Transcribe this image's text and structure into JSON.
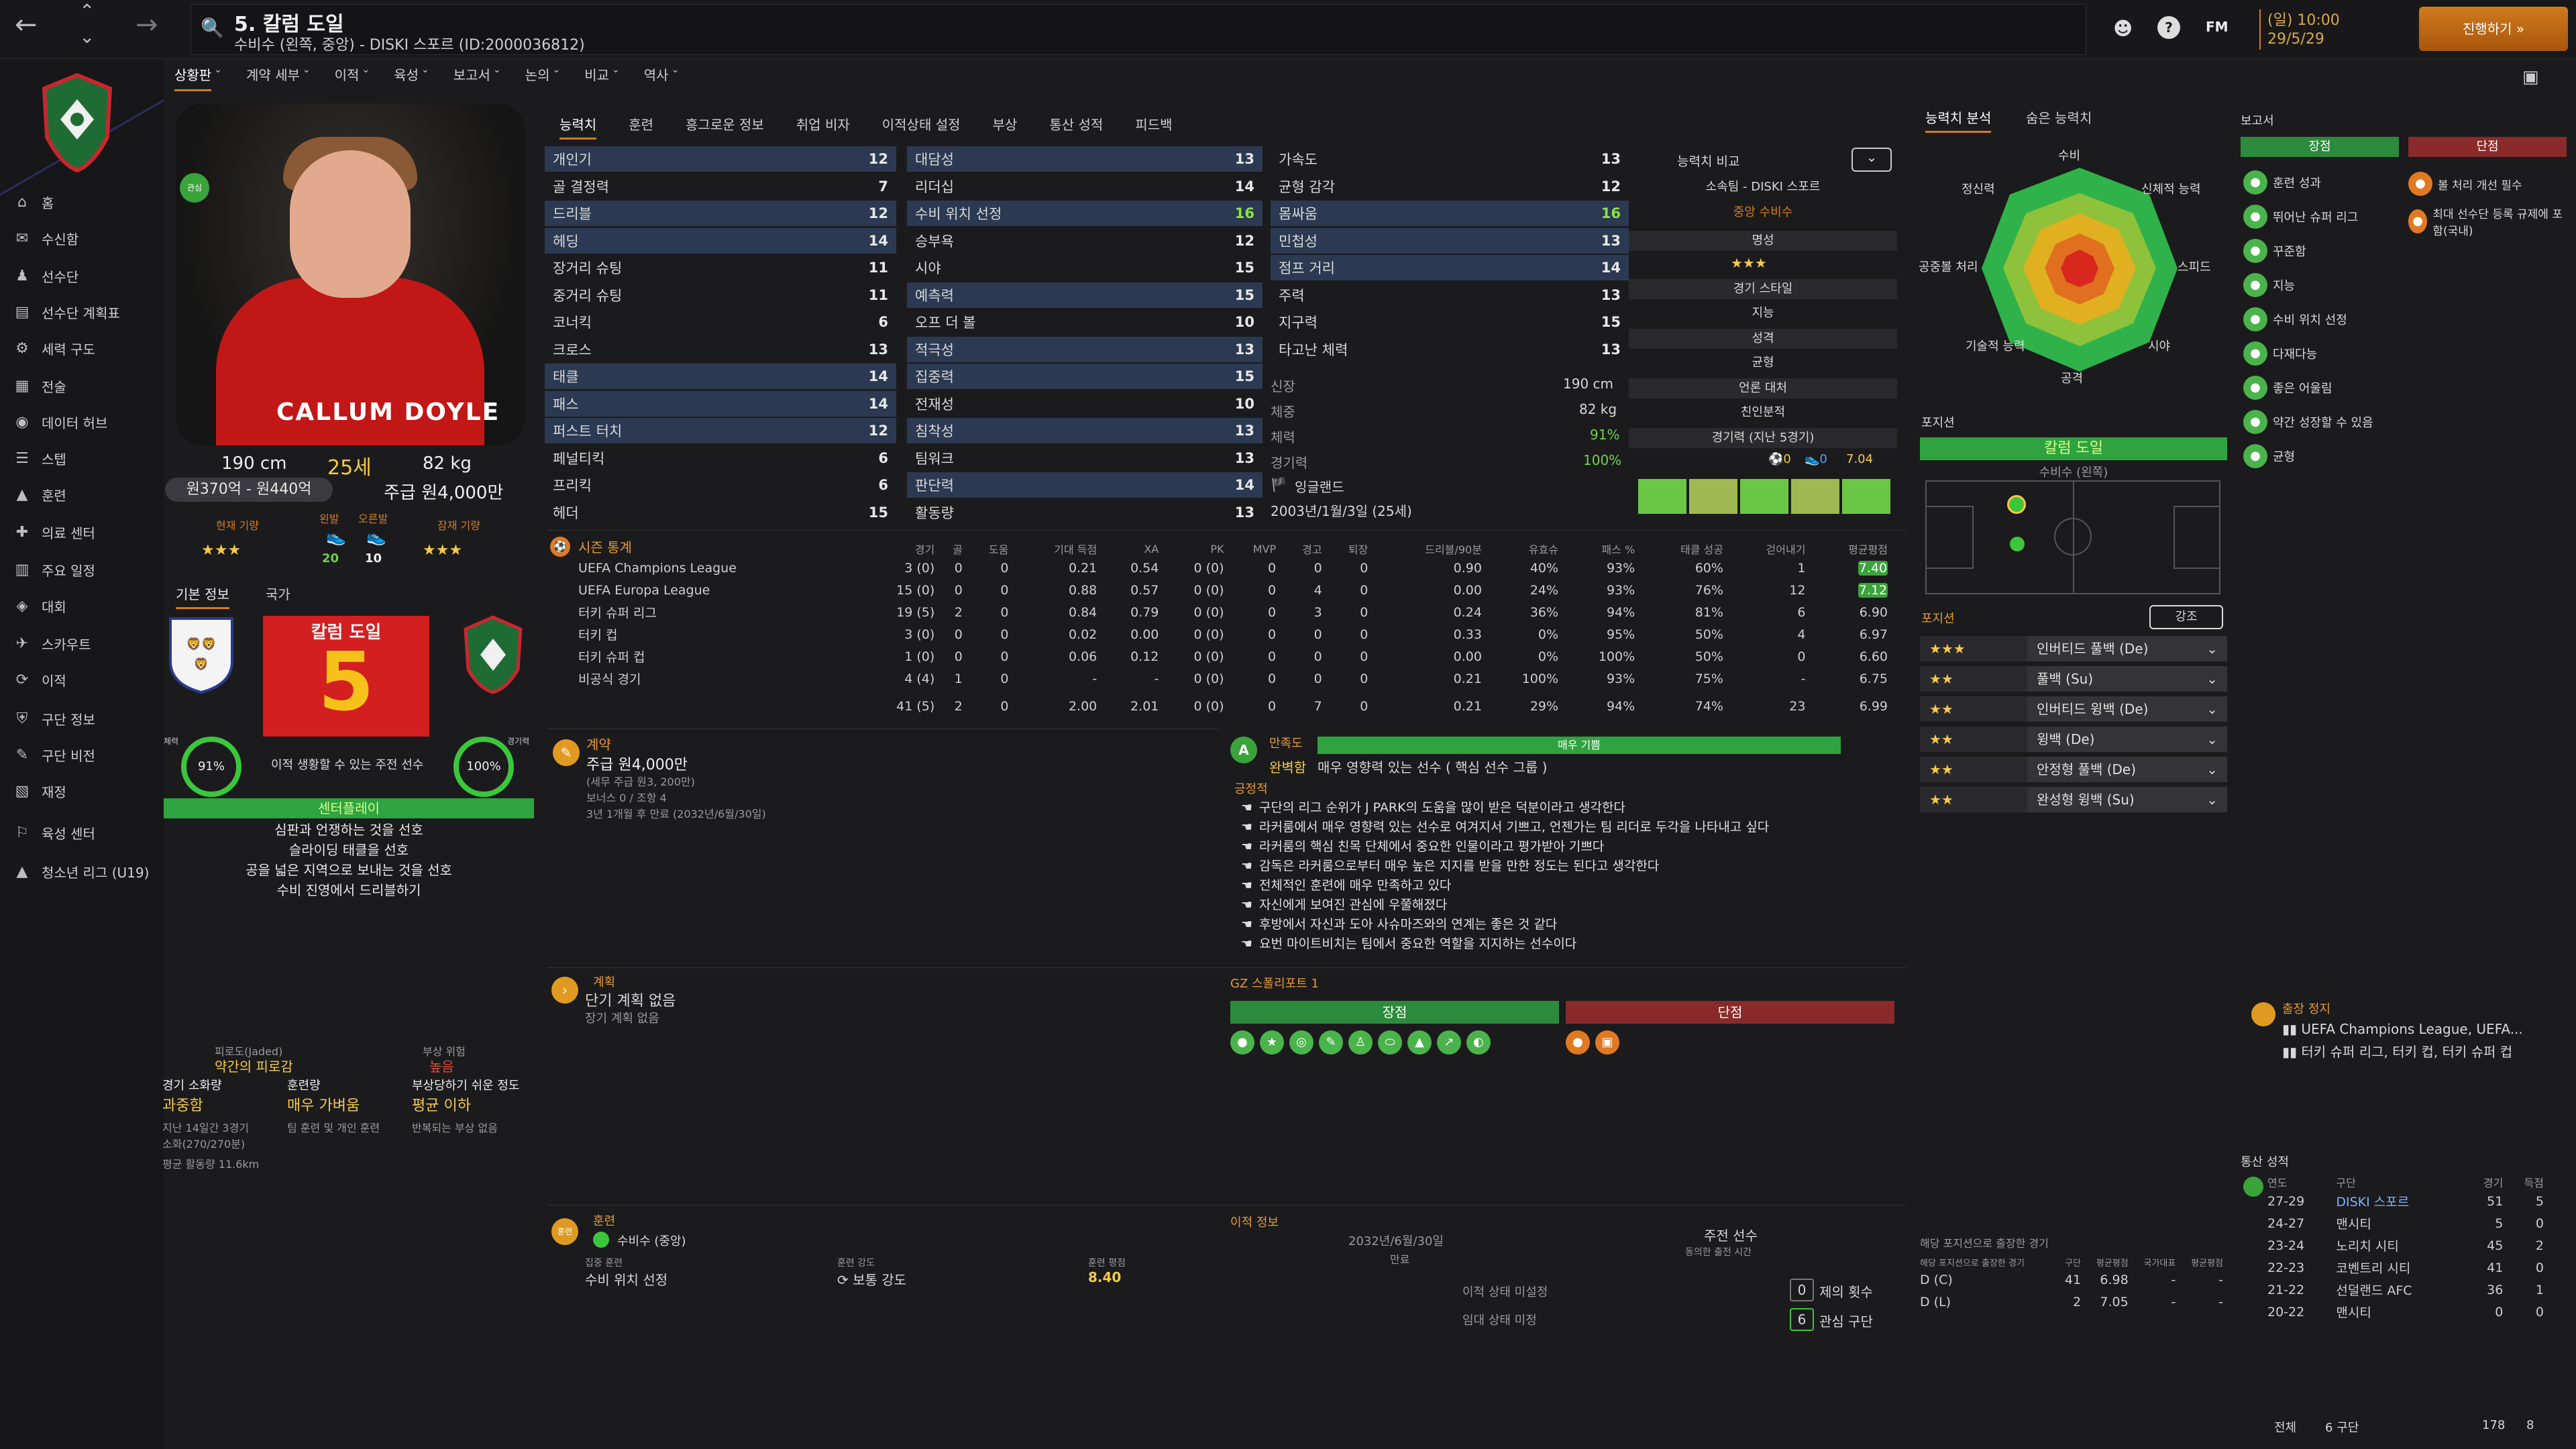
{
  "header": {
    "title": "5. 칼럼 도일",
    "subtitle": "수비수 (왼쪽, 중앙) - DISKI 스포르 (ID:2000036812)",
    "fm_label": "FM",
    "day": "(일) 10:00",
    "date": "29/5/29",
    "continue_label": "진행하기 »"
  },
  "sidebar": {
    "items": [
      {
        "label": "홈",
        "icon": "home-icon"
      },
      {
        "label": "수신함",
        "icon": "inbox-icon"
      },
      {
        "label": "선수단",
        "icon": "squad-icon"
      },
      {
        "label": "선수단 계획표",
        "icon": "plan-icon"
      },
      {
        "label": "세력 구도",
        "icon": "dynamics-icon"
      },
      {
        "label": "전술",
        "icon": "tactics-icon"
      },
      {
        "label": "데이터 허브",
        "icon": "data-icon"
      },
      {
        "label": "스텝",
        "icon": "staff-icon"
      },
      {
        "label": "훈련",
        "icon": "training-icon"
      },
      {
        "label": "의료 센터",
        "icon": "medical-icon"
      },
      {
        "label": "주요 일정",
        "icon": "calendar-icon"
      },
      {
        "label": "대회",
        "icon": "competition-icon"
      },
      {
        "label": "스카우트",
        "icon": "scout-icon"
      },
      {
        "label": "이적",
        "icon": "transfer-icon"
      },
      {
        "label": "구단 정보",
        "icon": "club-info-icon"
      },
      {
        "label": "구단 비전",
        "icon": "vision-icon"
      },
      {
        "label": "재정",
        "icon": "finance-icon"
      },
      {
        "label": "육성 센터",
        "icon": "development-icon"
      },
      {
        "label": "청소년 리그 (U19)",
        "icon": "youth-icon"
      }
    ]
  },
  "subnav": [
    "상황판",
    "계약 세부",
    "이적",
    "육성",
    "보고서",
    "논의",
    "비교",
    "역사"
  ],
  "player": {
    "shirt_name": "CALLUM DOYLE",
    "height": "190 cm",
    "age": "25세",
    "weight": "82 kg",
    "value": "원370억 - 원440억",
    "wage": "주급 원4,000만",
    "current_ability_label": "현재 기량",
    "potential_label": "잠재 기량",
    "left_foot_label": "왼발",
    "right_foot_label": "오른발",
    "left_foot": "20",
    "right_foot": "10",
    "stars_current": "★★★",
    "stars_potential": "★★★",
    "tab_basic": "기본 정보",
    "tab_national": "국가",
    "card_name": "칼럼 도일",
    "card_number": "5",
    "fitness_label": "체력",
    "fitness": "91%",
    "match_label": "경기력",
    "match": "100%",
    "pos_note": "이적 생황할 수 있는 주전 선수",
    "mentality": "센터플레이",
    "traits": [
      "심판과 언쟁하는 것을 선호",
      "슬라이딩 태클을 선호",
      "공을 넓은 지역으로 보내는 것을 선호",
      "수비 진영에서 드리블하기"
    ],
    "fatigue_label": "피로도(Jaded)",
    "fatigue": "약간의 피로감",
    "risk_label": "부상 위험",
    "risk": "높음",
    "load_label": "경기 소화량",
    "load": "과중함",
    "training_label": "훈련량",
    "training": "매우 가벼움",
    "injury_label": "부상당하기 쉬운 정도",
    "injury": "평균 이하",
    "load_note1": "지난 14일간 3경기",
    "load_note2": "소화(270/270분)",
    "load_note3": "평균 활동량 11.6km",
    "training_note": "팀 훈련 및 개인 훈련",
    "injury_note": "반복되는 부상 없음"
  },
  "tabs": [
    "능력치",
    "훈련",
    "흥그로운 정보",
    "취업 비자",
    "이적상태 설정",
    "부상",
    "통산 성적",
    "피드백"
  ],
  "attributes": {
    "col1": [
      [
        "개인기",
        "12",
        "w",
        true
      ],
      [
        "골 결정력",
        "7",
        "w",
        false
      ],
      [
        "드리블",
        "12",
        "w",
        true
      ],
      [
        "헤딩",
        "14",
        "w",
        true
      ],
      [
        "장거리 슈팅",
        "11",
        "w",
        false
      ],
      [
        "중거리 슈팅",
        "11",
        "w",
        false
      ],
      [
        "코너킥",
        "6",
        "w",
        false
      ],
      [
        "크로스",
        "13",
        "w",
        false
      ],
      [
        "태클",
        "14",
        "w",
        true
      ],
      [
        "패스",
        "14",
        "w",
        true
      ],
      [
        "퍼스트 터치",
        "12",
        "w",
        true
      ],
      [
        "페널티킥",
        "6",
        "w",
        false
      ],
      [
        "프리킥",
        "6",
        "w",
        false
      ],
      [
        "헤더",
        "15",
        "w",
        false
      ]
    ],
    "col2": [
      [
        "대담성",
        "13",
        "w",
        true
      ],
      [
        "리더십",
        "14",
        "w",
        false
      ],
      [
        "수비 위치 선정",
        "16",
        "g",
        true
      ],
      [
        "승부욕",
        "12",
        "w",
        false
      ],
      [
        "시야",
        "15",
        "w",
        false
      ],
      [
        "예측력",
        "15",
        "w",
        true
      ],
      [
        "오프 더 볼",
        "10",
        "w",
        false
      ],
      [
        "적극성",
        "13",
        "w",
        true
      ],
      [
        "집중력",
        "15",
        "w",
        true
      ],
      [
        "전재성",
        "10",
        "w",
        false
      ],
      [
        "침착성",
        "13",
        "w",
        true
      ],
      [
        "팀워크",
        "13",
        "w",
        false
      ],
      [
        "판단력",
        "14",
        "w",
        true
      ],
      [
        "활동량",
        "13",
        "w",
        false
      ]
    ],
    "col3": [
      [
        "가속도",
        "13",
        "w",
        false
      ],
      [
        "균형 감각",
        "12",
        "w",
        false
      ],
      [
        "몸싸움",
        "16",
        "g",
        true
      ],
      [
        "민첩성",
        "13",
        "w",
        true
      ],
      [
        "점프 거리",
        "14",
        "w",
        true
      ],
      [
        "주력",
        "13",
        "w",
        false
      ],
      [
        "지구력",
        "15",
        "w",
        false
      ],
      [
        "타고난 체력",
        "13",
        "w",
        false
      ]
    ],
    "height_label": "신장",
    "height": "190 cm",
    "weight_label": "체중",
    "weight": "82 kg",
    "fitness_label": "체력",
    "fitness": "91%",
    "match_label": "경기력",
    "match": "100%",
    "nation": "잉글랜드",
    "dob": "2003년/1월/3일 (25세)"
  },
  "compare": {
    "title": "능력치 비교",
    "club": "소속팀 - DISKI 스포르",
    "pos": "중앙 수비수",
    "fame_label": "명성",
    "fame_stars": "★★★",
    "style_label": "경기 스타일",
    "style": "지능",
    "personality_label": "성격",
    "personality": "균형",
    "media_label": "언론 대처",
    "media": "친인분적",
    "form_label": "경기력 (지난 5경기)",
    "form_goals": "0",
    "form_assists": "0",
    "form_rating": "7.04"
  },
  "season": {
    "title": "시즌 통계",
    "headers": [
      "경기",
      "골",
      "도움",
      "기대 득점",
      "XA",
      "PK",
      "MVP",
      "경고",
      "퇴장",
      "드리블/90분",
      "유효슈",
      "패스 %",
      "태클 성공",
      "걷어내기",
      "평균평점"
    ],
    "rows": [
      {
        "comp": "UEFA Champions League",
        "vals": [
          "3 (0)",
          "0",
          "0",
          "0.21",
          "0.54",
          "0 (0)",
          "0",
          "0",
          "0",
          "0.90",
          "40%",
          "93%",
          "60%",
          "1",
          "7.40"
        ],
        "hl": true
      },
      {
        "comp": "UEFA Europa League",
        "vals": [
          "15 (0)",
          "0",
          "0",
          "0.88",
          "0.57",
          "0 (0)",
          "0",
          "4",
          "0",
          "0.00",
          "24%",
          "93%",
          "76%",
          "12",
          "7.12"
        ],
        "hl": true
      },
      {
        "comp": "터키 슈퍼 리그",
        "vals": [
          "19 (5)",
          "2",
          "0",
          "0.84",
          "0.79",
          "0 (0)",
          "0",
          "3",
          "0",
          "0.24",
          "36%",
          "94%",
          "81%",
          "6",
          "6.90"
        ],
        "hl": false
      },
      {
        "comp": "터키 컵",
        "vals": [
          "3 (0)",
          "0",
          "0",
          "0.02",
          "0.00",
          "0 (0)",
          "0",
          "0",
          "0",
          "0.33",
          "0%",
          "95%",
          "50%",
          "4",
          "6.97"
        ],
        "hl": false
      },
      {
        "comp": "터키 슈퍼 컵",
        "vals": [
          "1 (0)",
          "0",
          "0",
          "0.06",
          "0.12",
          "0 (0)",
          "0",
          "0",
          "0",
          "0.00",
          "0%",
          "100%",
          "50%",
          "0",
          "6.60"
        ],
        "hl": false
      },
      {
        "comp": "비공식 경기",
        "vals": [
          "4 (4)",
          "1",
          "0",
          "-",
          "-",
          "0 (0)",
          "0",
          "0",
          "0",
          "0.21",
          "100%",
          "93%",
          "75%",
          "-",
          "6.75"
        ],
        "hl": false
      }
    ],
    "total": [
      "41 (5)",
      "2",
      "0",
      "2.00",
      "2.01",
      "0 (0)",
      "0",
      "7",
      "0",
      "0.21",
      "29%",
      "94%",
      "74%",
      "23",
      "6.99"
    ]
  },
  "contract": {
    "title": "계약",
    "wage": "주급 원4,000만",
    "gross": "(세무 주급 원3, 200만)",
    "bonus": "보너스 0 / 조항 4",
    "expiry": "3년 1개월 후 만료 (2032년/6월/30일)"
  },
  "satisfaction": {
    "title": "만족도",
    "status": "완벽함",
    "status_note": "매우 영향력 있는 선수 ( 핵심 선수 그룹 )",
    "bar_label": "매우 기쁨",
    "positive_label": "긍정적",
    "items": [
      "구단의 리그 순위가 J PARK의 도움을 많이 받은 덕분이라고 생각한다",
      "라커룸에서 매우 영향력 있는 선수로 여겨지서 기쁘고, 언젠가는 팀 리더로 두각을 나타내고 싶다",
      "라커룸의 핵심 친목 단체에서 중요한 인물이라고 평가받아 기쁘다",
      "감독은 라커룸으로부터 매우 높은 지지를 받을 만한 정도는 된다고 생각한다",
      "전체적인 훈련에 매우 만족하고 있다",
      "자신에게 보여진 관심에 우쭐해졌다",
      "후방에서 자신과 도아 사슈마즈와의 연계는 좋은 것 같다",
      "요번 마이트비치는 팀에서 중요한 역할을 지지하는 선수이다"
    ]
  },
  "plan": {
    "title": "계획",
    "short": "단기 계획 없음",
    "long": "장기 계획 없음"
  },
  "scout": {
    "title": "GZ 스폴리포트 1",
    "pros_label": "장점",
    "cons_label": "단점"
  },
  "training": {
    "title": "훈련",
    "role": "수비수 (중앙)",
    "focus_label": "집중 훈련",
    "focus": "수비 위치 선정",
    "intensity_label": "훈련 강도",
    "intensity": "보통 강도",
    "rating_label": "훈련 평점",
    "rating": "8.40"
  },
  "transfer": {
    "title": "이적 정보",
    "contract_date": "2032년/6월/30일",
    "contract_label": "만료",
    "role": "주전 선수",
    "role_note": "동의한 출전 시간",
    "status1": "이적 상태 미설정",
    "status2": "임대 상태 미정",
    "offers_count": "0",
    "offers_label": "제의 횟수",
    "interest_count": "6",
    "interest_label": "관심 구단"
  },
  "radar": {
    "tab1": "능력치 분석",
    "tab2": "숨은 능력치",
    "labels": [
      "수비",
      "신체적 능력",
      "스피드",
      "시야",
      "공격",
      "기술적 능력",
      "공중볼 처리",
      "정신력"
    ]
  },
  "positions": {
    "title": "포지션",
    "name": "칼럼 도일",
    "pos": "수비수 (왼쪽)",
    "list_title": "포지션",
    "emphasis": "강조",
    "roles": [
      [
        "★★★",
        "인버티드 풀백 (De)"
      ],
      [
        "★★",
        "풀백 (Su)"
      ],
      [
        "★★",
        "인버티드 윙백 (De)"
      ],
      [
        "★★",
        "윙백 (De)"
      ],
      [
        "★★",
        "안정형 풀백 (De)"
      ],
      [
        "★★",
        "완성형 윙백 (Su)"
      ]
    ]
  },
  "appearance": {
    "title": "해당 포지션으로 출장한 경기",
    "headers": [
      "해당 포지션으로 출장한 경기",
      "구단",
      "평균평점",
      "국가대표",
      "평균평점"
    ],
    "rows": [
      [
        "D (C)",
        "41",
        "6.98",
        "-",
        "-"
      ],
      [
        "D (L)",
        "2",
        "7.05",
        "-",
        "-"
      ]
    ]
  },
  "report": {
    "title": "보고서",
    "pros_label": "장점",
    "cons_label": "단점",
    "pros": [
      "훈련 성과",
      "뛰어난 슈퍼 리그",
      "꾸준함",
      "지능",
      "수비 위치 선정",
      "다재다능",
      "좋은 어울림",
      "약간 성장할 수 있음",
      "균형"
    ],
    "cons": [
      "볼 처리 개선 필수",
      "최대 선수단 등록 규제에 포함(국내)"
    ]
  },
  "suspension": {
    "title": "출장 정지",
    "line1": "UEFA Champions League, UEFA...",
    "line2": "터키 슈퍼 리그, 터키 컵, 터키 슈퍼 컵"
  },
  "career": {
    "title": "통산 성적",
    "headers": [
      "연도",
      "구단",
      "경기",
      "득점"
    ],
    "rows": [
      [
        "27-29",
        "DISKI 스포르",
        "51",
        "5"
      ],
      [
        "24-27",
        "맨시티",
        "5",
        "0"
      ],
      [
        "23-24",
        "노리치 시티",
        "45",
        "2"
      ],
      [
        "22-23",
        "코벤트리 시티",
        "41",
        "0"
      ],
      [
        "21-22",
        "선덜랜드 AFC",
        "36",
        "1"
      ],
      [
        "20-22",
        "맨시티",
        "0",
        "0"
      ]
    ],
    "total_label": "전체",
    "total_clubs": "6 구단",
    "total_apps": "178",
    "total_goals": "8"
  },
  "colors": {
    "accent": "#d27c20",
    "highlight_row": "#2b3a52",
    "green": "#4bb34b"
  }
}
